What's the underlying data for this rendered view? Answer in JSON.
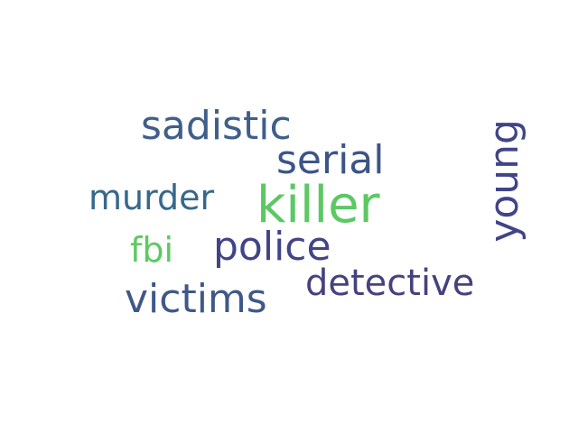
{
  "word_cloud": {
    "words": [
      {
        "text": "sadistic",
        "color": "#3f5f8a"
      },
      {
        "text": "serial",
        "color": "#3c5488"
      },
      {
        "text": "killer",
        "color": "#5cc863"
      },
      {
        "text": "murder",
        "color": "#36688c"
      },
      {
        "text": "fbi",
        "color": "#5ec962"
      },
      {
        "text": "police",
        "color": "#414487"
      },
      {
        "text": "victims",
        "color": "#3f5888"
      },
      {
        "text": "detective",
        "color": "#46427f"
      },
      {
        "text": "young",
        "color": "#414487"
      }
    ]
  }
}
